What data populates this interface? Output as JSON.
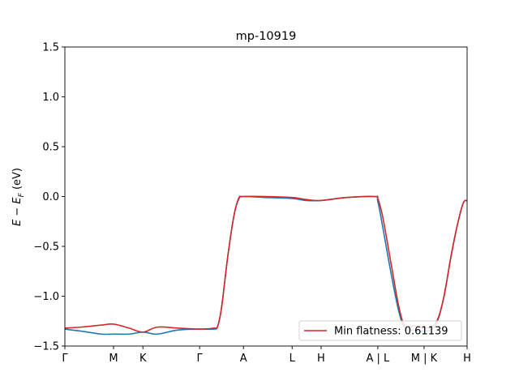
{
  "chart_data": {
    "type": "line",
    "title": "mp-10919",
    "xlabel": "",
    "ylabel": "E − E_F (eV)",
    "ylabel_display": {
      "prefix": "E",
      "op": " − ",
      "var": "E",
      "sub": "F",
      "suffix": " (eV)"
    },
    "ylim": [
      -1.5,
      1.5
    ],
    "xlim": [
      0,
      1
    ],
    "y_ticks": [
      {
        "value": -1.5,
        "label": "−1.5"
      },
      {
        "value": -1.0,
        "label": "−1.0"
      },
      {
        "value": -0.5,
        "label": "−0.5"
      },
      {
        "value": 0.0,
        "label": "0.0"
      },
      {
        "value": 0.5,
        "label": "0.5"
      },
      {
        "value": 1.0,
        "label": "1.0"
      },
      {
        "value": 1.5,
        "label": "1.5"
      }
    ],
    "x_ticks": [
      {
        "value": 0.0,
        "label": "Γ"
      },
      {
        "value": 0.121,
        "label": "M"
      },
      {
        "value": 0.194,
        "label": "K"
      },
      {
        "value": 0.335,
        "label": "Γ"
      },
      {
        "value": 0.444,
        "label": "A"
      },
      {
        "value": 0.565,
        "label": "L"
      },
      {
        "value": 0.637,
        "label": "H"
      },
      {
        "value": 0.778,
        "label": "A | L"
      },
      {
        "value": 0.893,
        "label": "M | K"
      },
      {
        "value": 1.0,
        "label": "H"
      }
    ],
    "grid": false,
    "legend": {
      "placement": "lower right",
      "entries": [
        {
          "label": "Min flatness: 0.61139",
          "color": "#d62728"
        }
      ]
    },
    "series": [
      {
        "color": "#1f77b4",
        "x": [
          0.0,
          0.04,
          0.09,
          0.121,
          0.16,
          0.194,
          0.23,
          0.28,
          0.335,
          0.37,
          0.38,
          0.39,
          0.405,
          0.42,
          0.432,
          0.444,
          0.5,
          0.565,
          0.6,
          0.637,
          0.7,
          0.77,
          0.778,
          0.79,
          0.81,
          0.83,
          0.845,
          0.86,
          0.87,
          0.893,
          0.92,
          0.94,
          0.96,
          0.975,
          0.99,
          1.0
        ],
        "y": [
          -1.33,
          -1.35,
          -1.38,
          -1.38,
          -1.38,
          -1.36,
          -1.38,
          -1.34,
          -1.33,
          -1.33,
          -1.3,
          -1.1,
          -0.6,
          -0.2,
          -0.03,
          0.0,
          -0.01,
          -0.02,
          -0.04,
          -0.04,
          -0.01,
          0.0,
          -0.05,
          -0.3,
          -0.75,
          -1.15,
          -1.32,
          -1.34,
          -1.34,
          -1.35,
          -1.3,
          -1.05,
          -0.6,
          -0.3,
          -0.07,
          -0.04
        ]
      },
      {
        "color": "#d62728",
        "x": [
          0.0,
          0.04,
          0.09,
          0.121,
          0.16,
          0.194,
          0.23,
          0.28,
          0.335,
          0.37,
          0.38,
          0.39,
          0.405,
          0.42,
          0.432,
          0.444,
          0.5,
          0.565,
          0.6,
          0.637,
          0.7,
          0.77,
          0.778,
          0.79,
          0.81,
          0.83,
          0.845,
          0.86,
          0.87,
          0.893,
          0.92,
          0.94,
          0.96,
          0.975,
          0.99,
          1.0
        ],
        "y": [
          -1.32,
          -1.31,
          -1.29,
          -1.28,
          -1.32,
          -1.36,
          -1.31,
          -1.32,
          -1.33,
          -1.32,
          -1.3,
          -1.1,
          -0.6,
          -0.2,
          -0.02,
          0.0,
          0.0,
          -0.01,
          -0.03,
          -0.04,
          -0.01,
          0.0,
          -0.02,
          -0.2,
          -0.65,
          -1.1,
          -1.3,
          -1.3,
          -1.3,
          -1.32,
          -1.28,
          -1.05,
          -0.6,
          -0.3,
          -0.07,
          -0.04
        ]
      }
    ]
  }
}
